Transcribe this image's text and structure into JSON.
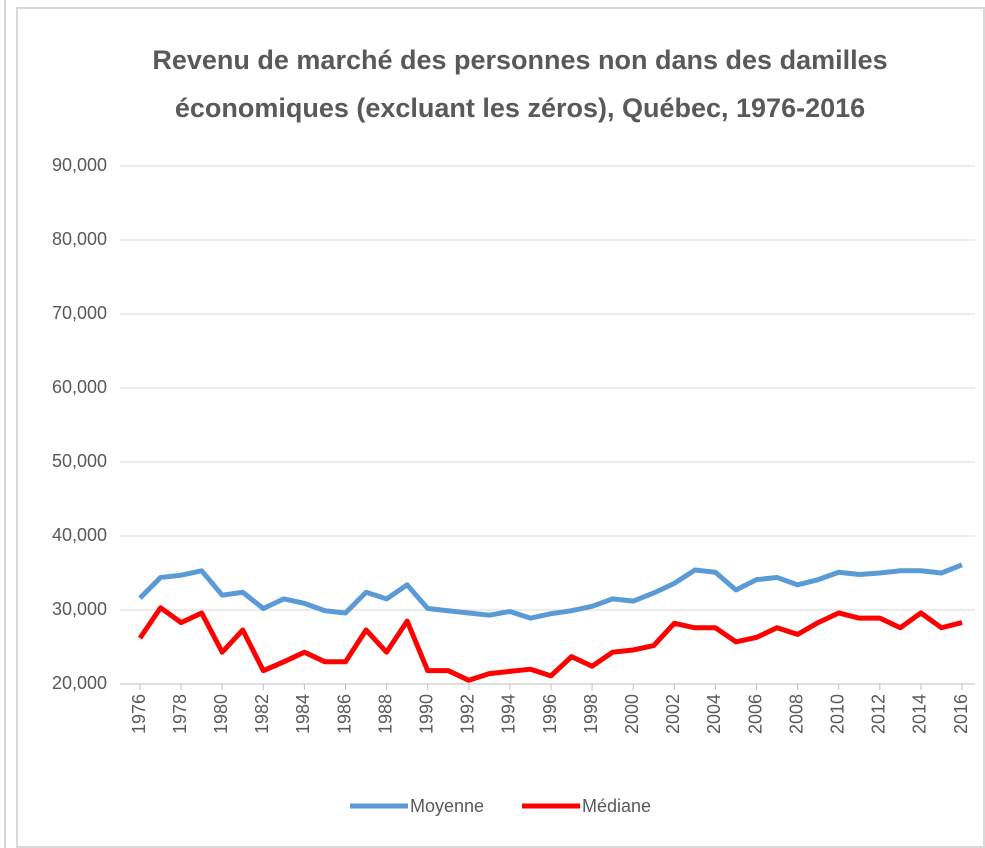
{
  "chart_data": {
    "type": "line",
    "title": [
      "Revenu de marché des personnes non dans des damilles",
      "économiques (excluant les zéros), Québec, 1976-2016"
    ],
    "x": [
      1976,
      1977,
      1978,
      1979,
      1980,
      1981,
      1982,
      1983,
      1984,
      1985,
      1986,
      1987,
      1988,
      1989,
      1990,
      1991,
      1992,
      1993,
      1994,
      1995,
      1996,
      1997,
      1998,
      1999,
      2000,
      2001,
      2002,
      2003,
      2004,
      2005,
      2006,
      2007,
      2008,
      2009,
      2010,
      2011,
      2012,
      2013,
      2014,
      2015,
      2016
    ],
    "xlim": [
      1976,
      2016
    ],
    "xticks": [
      1976,
      1978,
      1980,
      1982,
      1984,
      1986,
      1988,
      1990,
      1992,
      1994,
      1996,
      1998,
      2000,
      2002,
      2004,
      2006,
      2008,
      2010,
      2012,
      2014,
      2016
    ],
    "ylim": [
      20000,
      90000
    ],
    "yticks": [
      {
        "value": 20000,
        "label": "20,000"
      },
      {
        "value": 30000,
        "label": "30,000"
      },
      {
        "value": 40000,
        "label": "40,000"
      },
      {
        "value": 50000,
        "label": "50,000"
      },
      {
        "value": 60000,
        "label": "60,000"
      },
      {
        "value": 70000,
        "label": "70,000"
      },
      {
        "value": 80000,
        "label": "80,000"
      },
      {
        "value": 90000,
        "label": "90,000"
      }
    ],
    "grid": true,
    "legend": "bottom",
    "series": [
      {
        "name": "Moyenne",
        "color": "#5b9bd5",
        "values": [
          31600,
          34400,
          34700,
          35300,
          32000,
          32400,
          30200,
          31500,
          30900,
          29900,
          29600,
          32400,
          31500,
          33400,
          30200,
          29900,
          29600,
          29300,
          29800,
          28900,
          29500,
          29900,
          30500,
          31500,
          31200,
          32300,
          33600,
          35400,
          35100,
          32700,
          34100,
          34400,
          33400,
          34100,
          35100,
          34800,
          35000,
          35300,
          35300,
          35000,
          36100
        ]
      },
      {
        "name": "Médiane",
        "color": "#ff0000",
        "values": [
          26200,
          30300,
          28300,
          29600,
          24300,
          27300,
          21800,
          23000,
          24300,
          23000,
          23000,
          27300,
          24300,
          28500,
          21800,
          21800,
          20500,
          21400,
          21700,
          22000,
          21100,
          23700,
          22400,
          24300,
          24600,
          25200,
          28200,
          27600,
          27600,
          25700,
          26300,
          27600,
          26700,
          28300,
          29600,
          28900,
          28900,
          27600,
          29600,
          27600,
          28300
        ]
      }
    ]
  }
}
